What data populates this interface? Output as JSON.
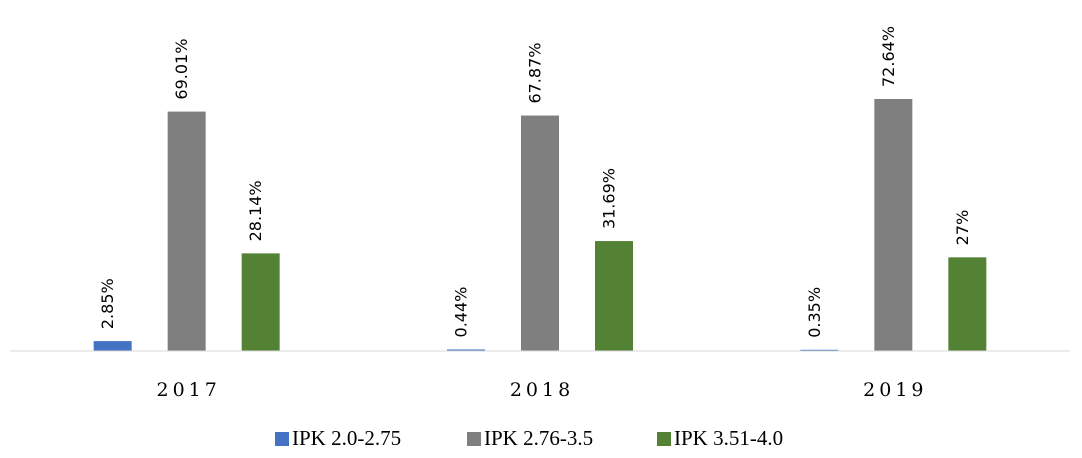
{
  "chart_data": {
    "type": "bar",
    "categories": [
      "2017",
      "2018",
      "2019"
    ],
    "series": [
      {
        "name": "IPK 2.0-2.75",
        "color": "#4472c4",
        "values": [
          2.85,
          0.44,
          0.35
        ],
        "value_labels": [
          "2.85%",
          "0.44%",
          "0.35%"
        ]
      },
      {
        "name": "IPK 2.76-3.5",
        "color": "#7f7f7f",
        "values": [
          69.01,
          67.87,
          72.64
        ],
        "value_labels": [
          "69.01%",
          "67.87%",
          "72.64%"
        ]
      },
      {
        "name": "IPK 3.51-4.0",
        "color": "#548235",
        "values": [
          28.14,
          31.69,
          27
        ],
        "value_labels": [
          "28.14%",
          "31.69%",
          "27%"
        ]
      }
    ],
    "legend": "bottom"
  }
}
